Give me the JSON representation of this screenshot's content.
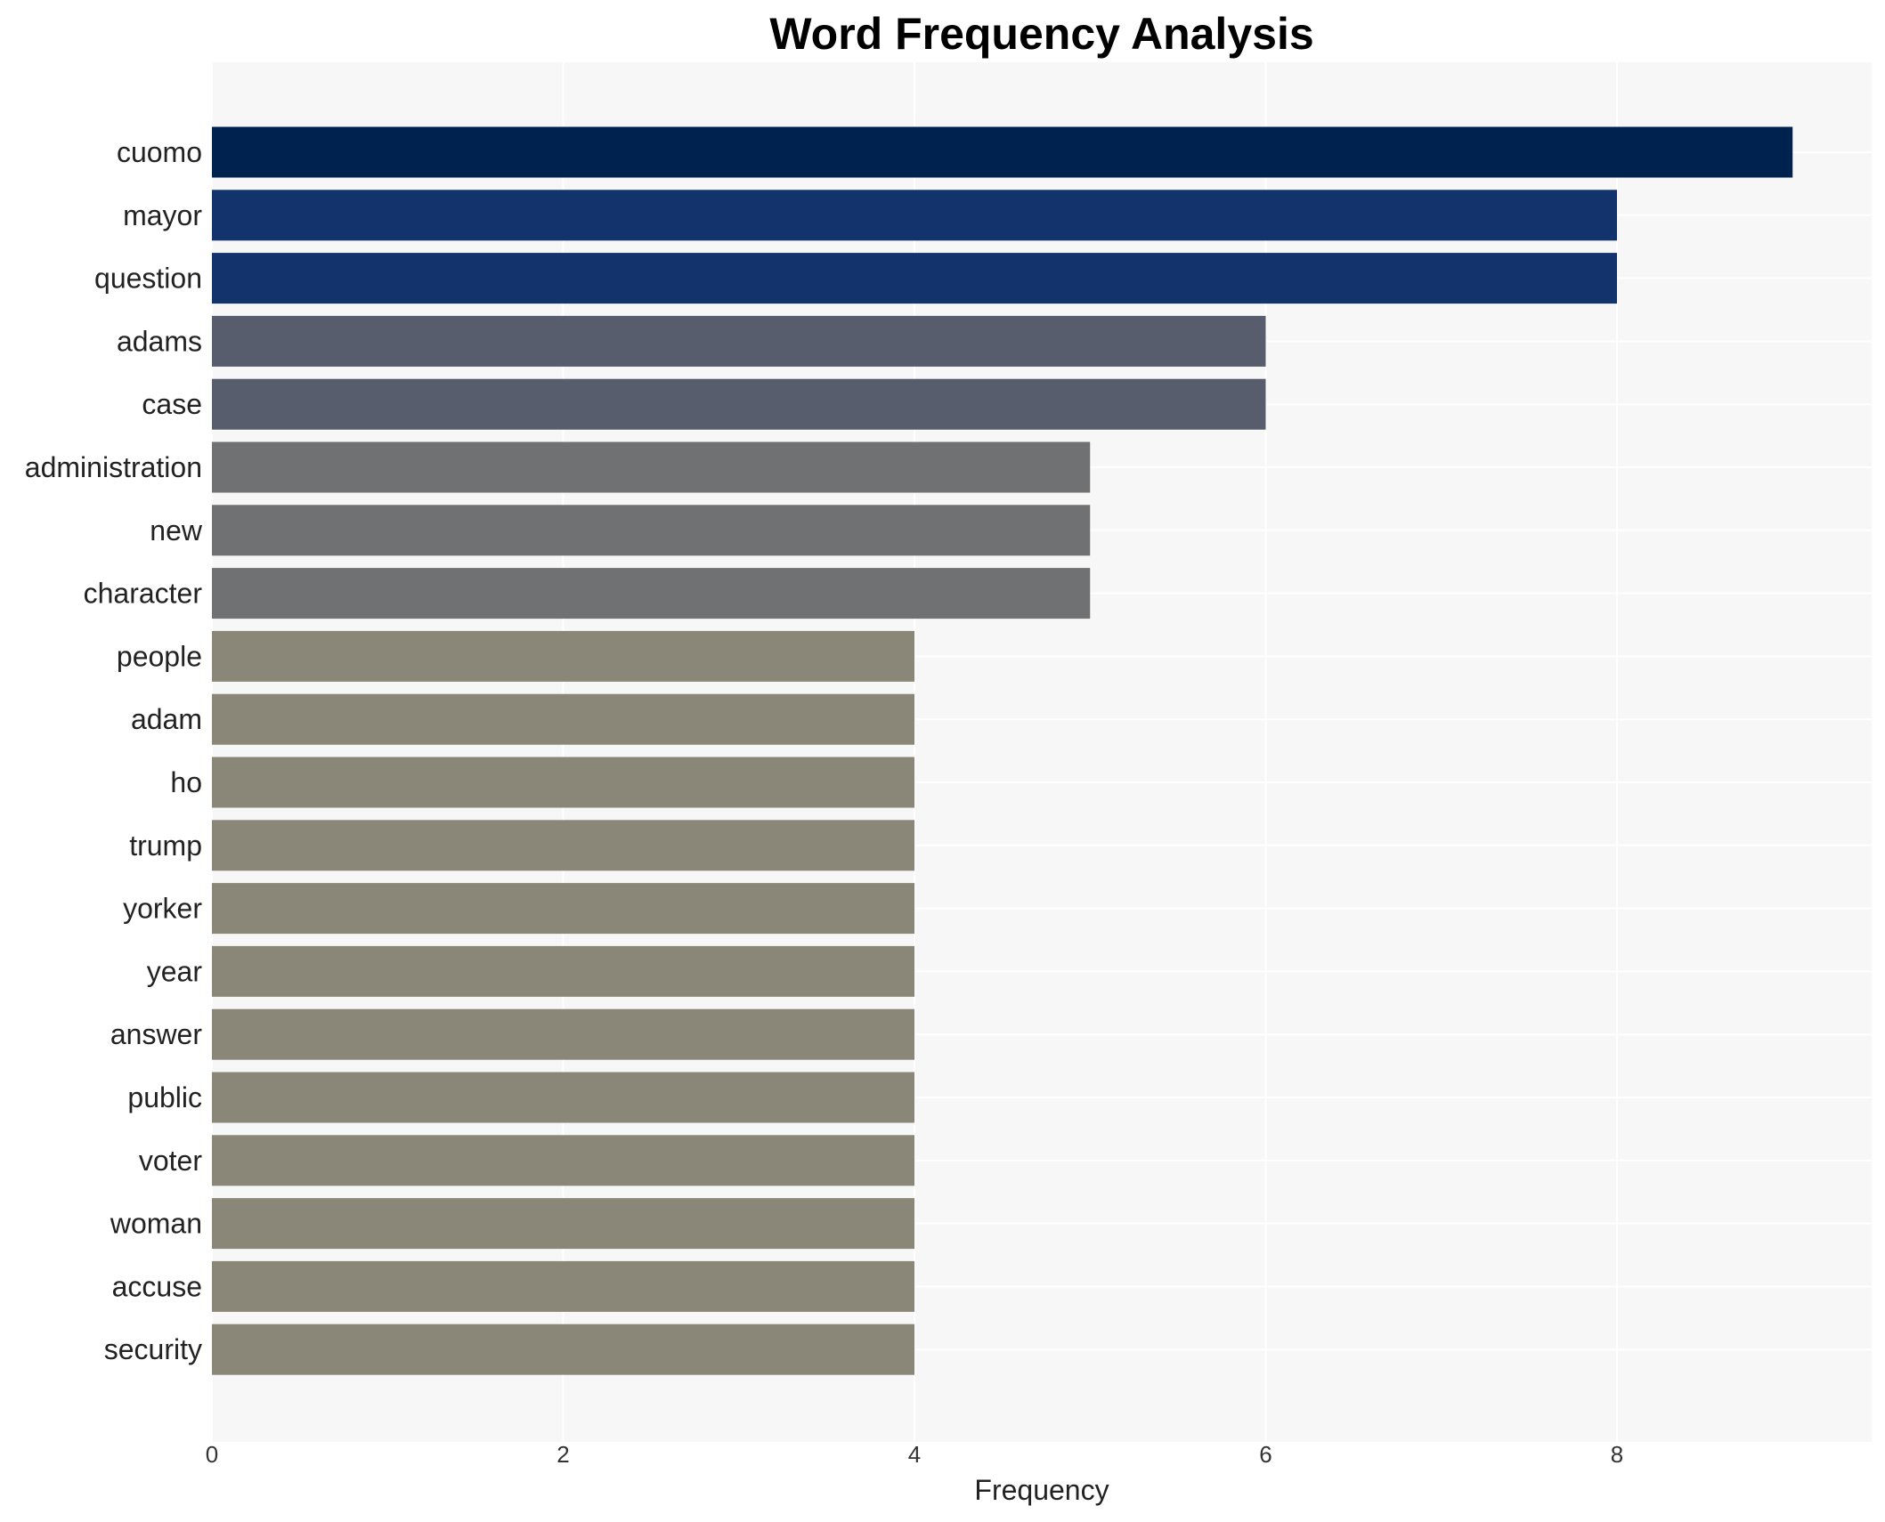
{
  "chart_data": {
    "type": "bar",
    "orientation": "horizontal",
    "title": "Word Frequency Analysis",
    "xlabel": "Frequency",
    "ylabel": "",
    "xlim": [
      0,
      9.45
    ],
    "xticks": [
      0,
      2,
      4,
      6,
      8
    ],
    "grid": true,
    "legend": "none",
    "categories": [
      "cuomo",
      "mayor",
      "question",
      "adams",
      "case",
      "administration",
      "new",
      "character",
      "people",
      "adam",
      "ho",
      "trump",
      "yorker",
      "year",
      "answer",
      "public",
      "voter",
      "woman",
      "accuse",
      "security"
    ],
    "values": [
      9,
      8,
      8,
      6,
      6,
      5,
      5,
      5,
      4,
      4,
      4,
      4,
      4,
      4,
      4,
      4,
      4,
      4,
      4,
      4
    ],
    "colors": [
      "#00224e",
      "#12336b",
      "#12336b",
      "#575d6d",
      "#575d6d",
      "#707173",
      "#707173",
      "#707173",
      "#8a8779",
      "#8a8779",
      "#8a8779",
      "#8a8779",
      "#8a8779",
      "#8a8779",
      "#8a8779",
      "#8a8779",
      "#8a8779",
      "#8a8779",
      "#8a8779",
      "#8a8779"
    ],
    "plot_background": "#f7f7f7",
    "grid_color": "#ffffff"
  }
}
